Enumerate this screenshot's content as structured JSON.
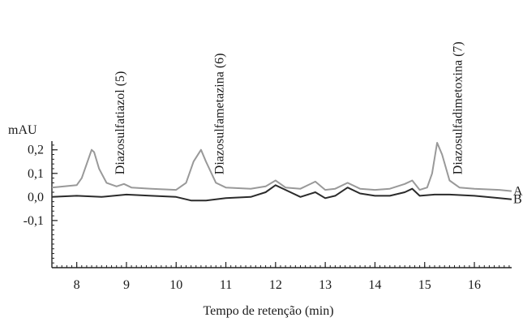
{
  "chart_data": {
    "type": "line",
    "title": "",
    "xlabel": "Tempo de retenção (min)",
    "ylabel": "mAU",
    "xlim": [
      7.5,
      16.75
    ],
    "ylim": [
      -0.3,
      0.23
    ],
    "x_ticks": [
      8,
      9,
      10,
      11,
      12,
      13,
      14,
      15,
      16
    ],
    "x_tick_labels": [
      "8",
      "9",
      "10",
      "11",
      "12",
      "13",
      "14",
      "15",
      "16"
    ],
    "y_ticks": [
      0.2,
      0.1,
      0.0,
      -0.1
    ],
    "y_tick_labels": [
      "0,2",
      "0,1",
      "0,0",
      "-0,1"
    ],
    "grid": false,
    "legend": "none (series labelled at right end of traces)",
    "series": [
      {
        "name": "A",
        "color": "#999999",
        "x": [
          7.5,
          8.0,
          8.1,
          8.2,
          8.3,
          8.35,
          8.45,
          8.6,
          8.8,
          8.95,
          9.1,
          9.5,
          10.0,
          10.2,
          10.35,
          10.5,
          10.6,
          10.8,
          11.0,
          11.5,
          11.8,
          12.0,
          12.2,
          12.5,
          12.8,
          13.0,
          13.2,
          13.45,
          13.7,
          14.0,
          14.3,
          14.6,
          14.75,
          14.9,
          15.05,
          15.15,
          15.25,
          15.35,
          15.5,
          15.7,
          16.0,
          16.5,
          16.75
        ],
        "y": [
          0.04,
          0.05,
          0.08,
          0.14,
          0.2,
          0.19,
          0.12,
          0.06,
          0.045,
          0.055,
          0.04,
          0.035,
          0.03,
          0.06,
          0.15,
          0.2,
          0.15,
          0.06,
          0.04,
          0.035,
          0.045,
          0.07,
          0.04,
          0.035,
          0.065,
          0.03,
          0.035,
          0.06,
          0.035,
          0.03,
          0.035,
          0.055,
          0.07,
          0.03,
          0.04,
          0.1,
          0.23,
          0.18,
          0.07,
          0.04,
          0.035,
          0.03,
          0.025
        ]
      },
      {
        "name": "B",
        "color": "#2b2b2b",
        "x": [
          7.5,
          8.0,
          8.5,
          9.0,
          9.5,
          10.0,
          10.3,
          10.6,
          11.0,
          11.5,
          11.8,
          12.0,
          12.2,
          12.5,
          12.8,
          13.0,
          13.2,
          13.45,
          13.7,
          14.0,
          14.3,
          14.6,
          14.75,
          14.9,
          15.2,
          15.5,
          16.0,
          16.5,
          16.75
        ],
        "y": [
          0.0,
          0.005,
          0.0,
          0.01,
          0.005,
          0.0,
          -0.015,
          -0.015,
          -0.005,
          0.0,
          0.02,
          0.05,
          0.03,
          0.0,
          0.02,
          -0.005,
          0.005,
          0.04,
          0.015,
          0.005,
          0.005,
          0.02,
          0.035,
          0.005,
          0.01,
          0.01,
          0.005,
          -0.005,
          -0.01
        ]
      }
    ],
    "annotations": [
      {
        "text": "Diazosulfatiazol (5)",
        "x": 8.95
      },
      {
        "text": "Diazosulfametazina (6)",
        "x": 10.95
      },
      {
        "text": "Diazosulfadimetoxina (7)",
        "x": 15.75
      }
    ]
  }
}
